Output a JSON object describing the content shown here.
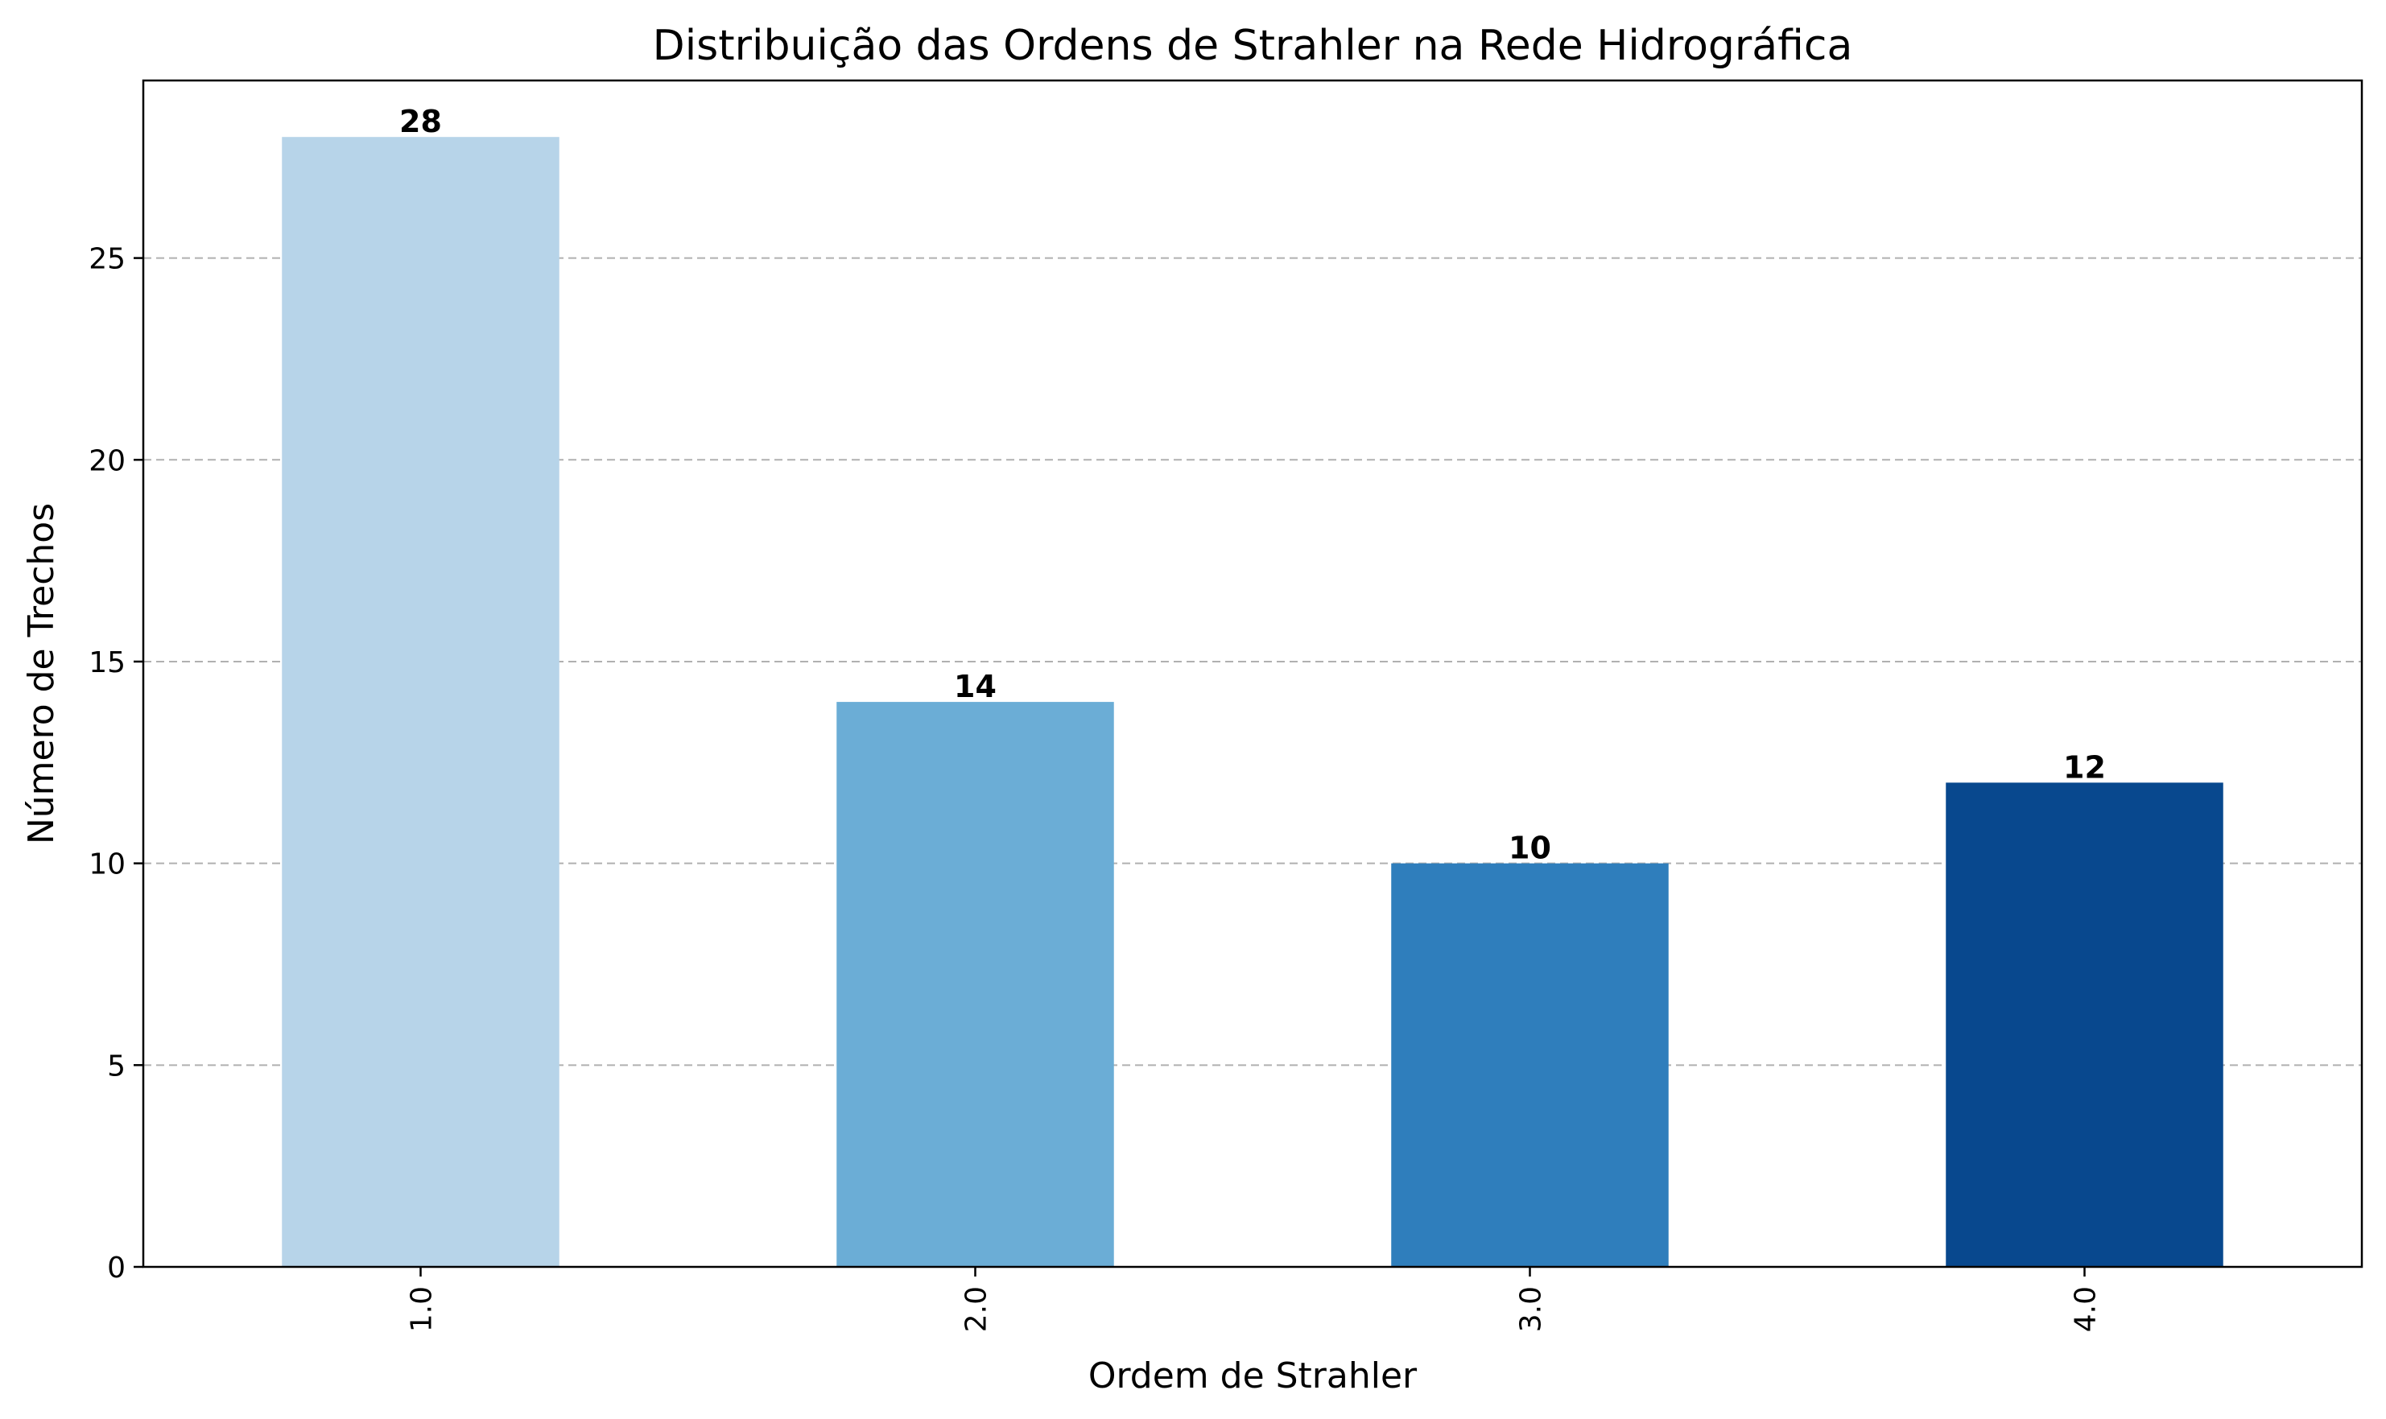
{
  "chart_data": {
    "type": "bar",
    "title": "Distribuição das Ordens de Strahler na Rede Hidrográfica",
    "xlabel": "Ordem de Strahler",
    "ylabel": "Número de Trechos",
    "categories": [
      "1.0",
      "2.0",
      "3.0",
      "4.0"
    ],
    "values": [
      28,
      14,
      10,
      12
    ],
    "data_labels": [
      "28",
      "14",
      "10",
      "12"
    ],
    "bar_colors": [
      "#b7d4e9",
      "#6badd6",
      "#2f7ebc",
      "#08488e"
    ],
    "ylim": [
      0,
      29.4
    ],
    "yticks": [
      0,
      5,
      10,
      15,
      20,
      25
    ],
    "ytick_labels": [
      "0",
      "5",
      "10",
      "15",
      "20",
      "25"
    ],
    "grid": "y-axis, dashed",
    "legend": "none"
  }
}
